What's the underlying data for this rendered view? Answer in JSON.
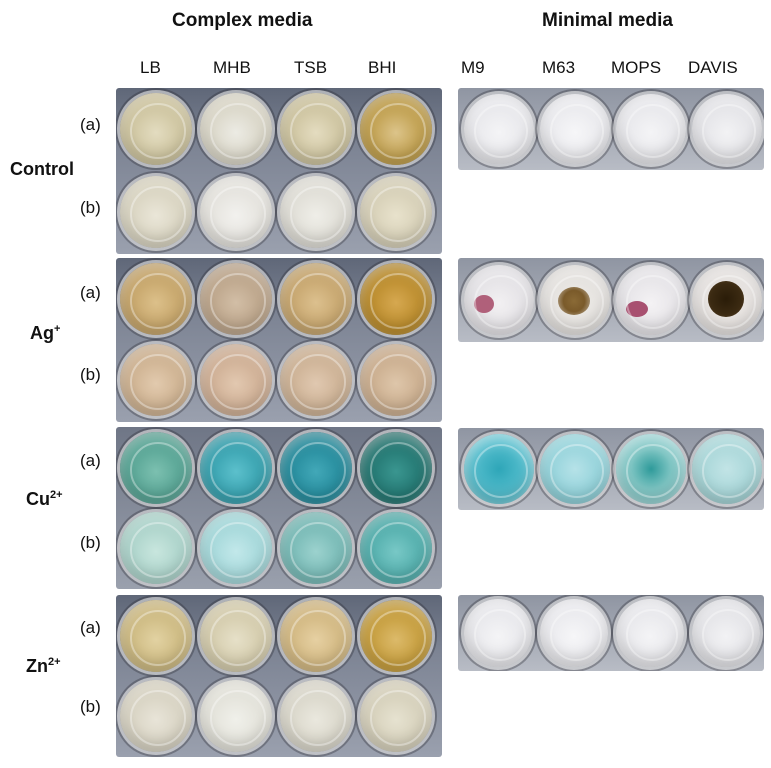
{
  "headers": {
    "complex": "Complex media",
    "minimal": "Minimal media"
  },
  "complex_columns": [
    "LB",
    "MHB",
    "TSB",
    "BHI"
  ],
  "minimal_columns": [
    "M9",
    "M63",
    "MOPS",
    "DAVIS"
  ],
  "row_labels": {
    "a": "(a)",
    "b": "(b)"
  },
  "conditions": [
    {
      "label": "Control",
      "sup": ""
    },
    {
      "label": "Ag",
      "sup": "+"
    },
    {
      "label": "Cu",
      "sup": "2+"
    },
    {
      "label": "Zn",
      "sup": "2+"
    }
  ],
  "colors": {
    "control_complex_a": [
      "#c9bf98",
      "#d6d2c2",
      "#c8be98",
      "#b99640"
    ],
    "control_complex_b": [
      "#d5d0bc",
      "#e2e0da",
      "#dcdad2",
      "#d2cbb2"
    ],
    "control_minimal": [
      "#e6e6ea",
      "#e8e8ec",
      "#e6e6ea",
      "#e2e2e6"
    ],
    "ag_complex_a": [
      "#c09e62",
      "#b79f84",
      "#c19f66",
      "#b48524"
    ],
    "ag_complex_b": [
      "#c9ac8a",
      "#caa98e",
      "#c8ac8e",
      "#c6a888"
    ],
    "ag_minimal": [
      "#e2e0e4",
      "#e2dfdc",
      "#e4e2e6",
      "#e2dedc"
    ],
    "cu_complex_a": [
      "#4f9e8e",
      "#2f9aa8",
      "#1f8596",
      "#1e6f6a"
    ],
    "cu_complex_b": [
      "#a6cfc6",
      "#9ed4d6",
      "#6fb4b0",
      "#4aa8a6"
    ],
    "cu_minimal": [
      "#52bccc",
      "#8ed0d8",
      "#7cc4c2",
      "#a4d4d6"
    ],
    "zn_complex_a": [
      "#c8b47a",
      "#d0c7a6",
      "#cdb27a",
      "#c09632"
    ],
    "zn_complex_b": [
      "#d4cfbe",
      "#e0dfd6",
      "#d6d3c6",
      "#d2ccb6"
    ],
    "zn_minimal": [
      "#e6e6ea",
      "#e8e8ec",
      "#e6e6ea",
      "#e2e2e6"
    ],
    "ag_precipitate": [
      "#b0607a",
      "#7a5a2a",
      "#a85070",
      "#3b2a12"
    ]
  }
}
